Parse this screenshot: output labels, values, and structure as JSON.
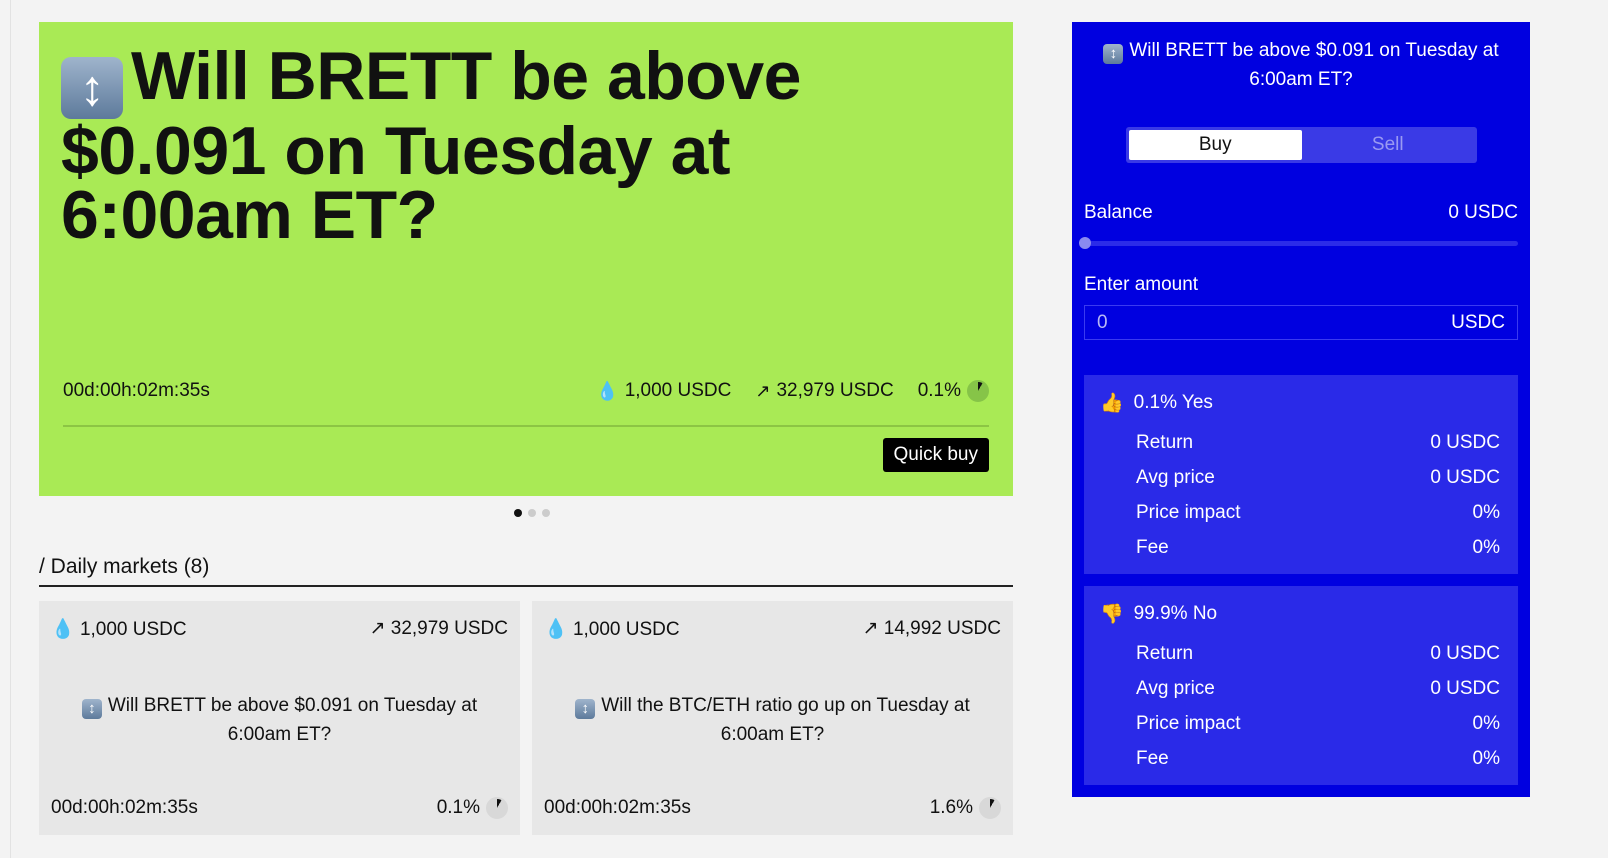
{
  "colors": {
    "hero": "#a9ea55",
    "panel": "#0000e0",
    "card": "#e7e7e7"
  },
  "hero": {
    "emoji": "↕",
    "title": "Will BRETT be above $0.091 on Tuesday at 6:00am ET?",
    "timer": "00d:00h:02m:35s",
    "liquidity": "1,000 USDC",
    "volume": "32,979 USDC",
    "percent": "0.1%",
    "percent_value": 0.1,
    "quick_buy": "Quick buy"
  },
  "carousel": {
    "pages": 3,
    "active": 1
  },
  "section": {
    "title": "/ Daily markets (8)"
  },
  "cards": [
    {
      "liquidity": "1,000 USDC",
      "volume": "32,979 USDC",
      "question": "Will BRETT be above $0.091 on Tuesday at 6:00am ET?",
      "timer": "00d:00h:02m:35s",
      "percent": "0.1%",
      "percent_value": 0.1
    },
    {
      "liquidity": "1,000 USDC",
      "volume": "14,992 USDC",
      "question": "Will the BTC/ETH ratio go up on Tuesday at 6:00am ET?",
      "timer": "00d:00h:02m:35s",
      "percent": "1.6%",
      "percent_value": 1.6
    }
  ],
  "panel": {
    "title": "Will BRETT be above $0.091 on Tuesday at 6:00am ET?",
    "buy": "Buy",
    "sell": "Sell",
    "balance_label": "Balance",
    "balance": "0 USDC",
    "slider_value": 0,
    "amount_label": "Enter amount",
    "amount_value": "0",
    "amount_unit": "USDC",
    "yes": {
      "head": "0.1% Yes",
      "rows": [
        [
          "Return",
          "0 USDC"
        ],
        [
          "Avg price",
          "0 USDC"
        ],
        [
          "Price impact",
          "0%"
        ],
        [
          "Fee",
          "0%"
        ]
      ]
    },
    "no": {
      "head": "99.9% No",
      "rows": [
        [
          "Return",
          "0 USDC"
        ],
        [
          "Avg price",
          "0 USDC"
        ],
        [
          "Price impact",
          "0%"
        ],
        [
          "Fee",
          "0%"
        ]
      ]
    }
  }
}
